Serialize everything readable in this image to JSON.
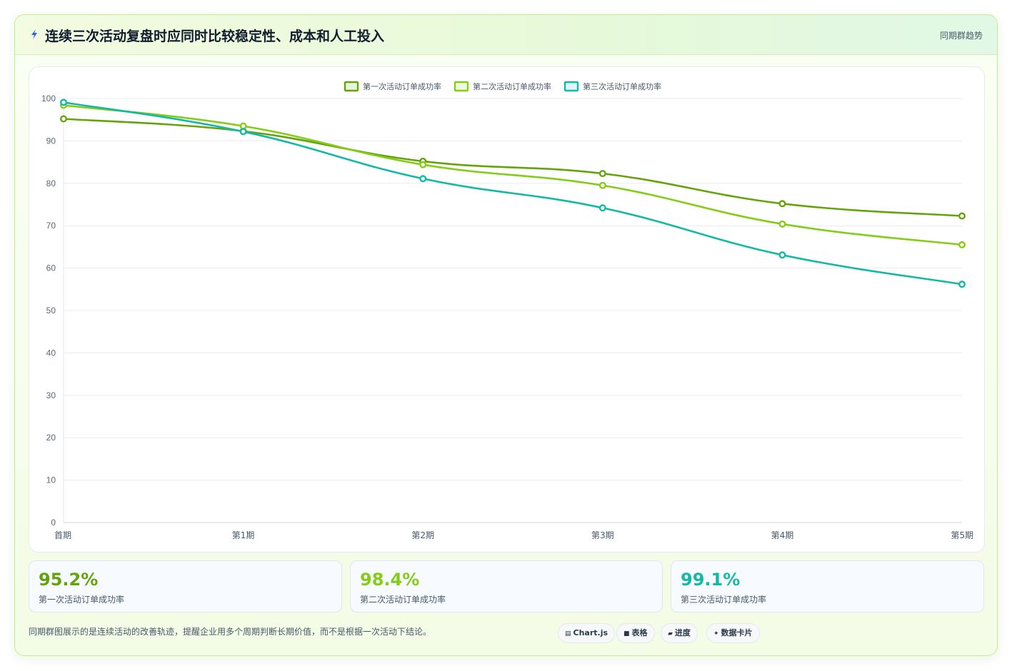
{
  "header": {
    "icon": "lightning-icon",
    "title": "连续三次活动复盘时应同时比较稳定性、成本和人工投入",
    "tag": "同期群趋势"
  },
  "chart_data": {
    "type": "line",
    "categories": [
      "首期",
      "第1期",
      "第2期",
      "第3期",
      "第4期",
      "第5期"
    ],
    "series": [
      {
        "name": "第一次活动订单成功率",
        "color": "#65a30d",
        "values": [
          95.2,
          92.3,
          85.2,
          82.3,
          75.2,
          72.3
        ]
      },
      {
        "name": "第二次活动订单成功率",
        "color": "#84cc16",
        "values": [
          98.4,
          93.5,
          84.4,
          79.5,
          70.4,
          65.5
        ]
      },
      {
        "name": "第三次活动订单成功率",
        "color": "#14b8a6",
        "values": [
          99.1,
          92.2,
          81.1,
          74.2,
          63.1,
          56.2
        ]
      }
    ],
    "ylim": [
      0,
      100
    ],
    "yticks": [
      0,
      10,
      20,
      30,
      40,
      50,
      60,
      70,
      80,
      90,
      100
    ],
    "grid": true,
    "legend": "top"
  },
  "stats": [
    {
      "value": "95.2%",
      "label": "第一次活动订单成功率",
      "color": "#65a30d"
    },
    {
      "value": "98.4%",
      "label": "第二次活动订单成功率",
      "color": "#84cc16"
    },
    {
      "value": "99.1%",
      "label": "第三次活动订单成功率",
      "color": "#14b8a6"
    }
  ],
  "footnote": "同期群图展示的是连续活动的改善轨迹，提醒企业用多个周期判断长期价值，而不是根据一次活动下结论。",
  "chips": [
    {
      "icon": "▤",
      "label": "Chart.js"
    },
    {
      "icon": "■",
      "label": "表格"
    },
    {
      "icon": "▰",
      "label": "进度"
    },
    {
      "icon": "✦",
      "label": "数据卡片"
    }
  ]
}
